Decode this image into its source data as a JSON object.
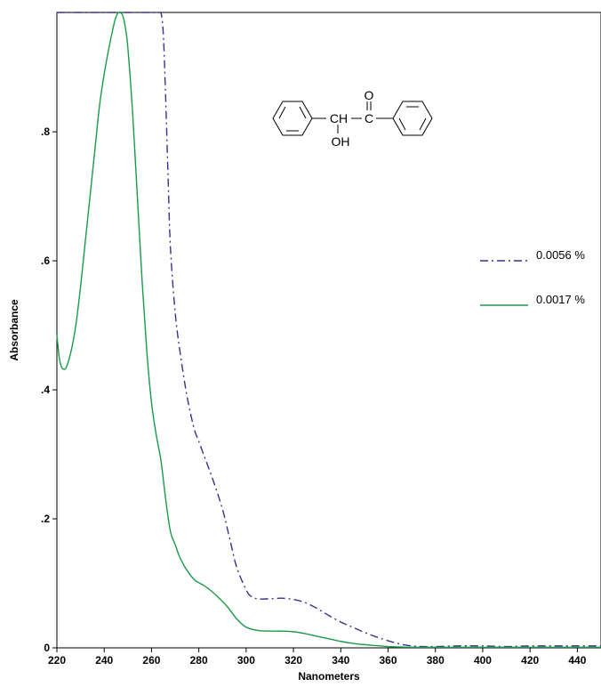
{
  "chart_data": {
    "type": "line",
    "title": "",
    "xlabel": "Nanometers",
    "ylabel": "Absorbance",
    "xlim": [
      220,
      450
    ],
    "ylim": [
      0,
      0.985
    ],
    "x_ticks": [
      220,
      240,
      260,
      280,
      300,
      320,
      340,
      360,
      380,
      400,
      420,
      440
    ],
    "x_tick_labels": [
      "220",
      "240",
      "260",
      "280",
      "300",
      "320",
      "340",
      "360",
      "380",
      "400",
      "420",
      "440"
    ],
    "y_ticks": [
      0,
      0.2,
      0.4,
      0.6,
      0.8
    ],
    "y_tick_labels": [
      "0",
      ".2",
      ".4",
      ".6",
      ".8"
    ],
    "grid": false,
    "legend_position": "right",
    "series": [
      {
        "name": "0.0056 %",
        "style": "dash-dot",
        "color": "#3a2f8f",
        "x": [
          220,
          230,
          240,
          250,
          260,
          263,
          264,
          265,
          266,
          267,
          268,
          270,
          272,
          275,
          278,
          280,
          283,
          286,
          290,
          293,
          296,
          300,
          302,
          305,
          310,
          315,
          320,
          325,
          330,
          335,
          340,
          345,
          350,
          355,
          360,
          365,
          370,
          375,
          380,
          390,
          400,
          410,
          420,
          430,
          440,
          450
        ],
        "y": [
          0.985,
          0.985,
          0.985,
          0.985,
          0.985,
          0.985,
          0.985,
          0.95,
          0.85,
          0.73,
          0.62,
          0.52,
          0.46,
          0.39,
          0.34,
          0.32,
          0.29,
          0.26,
          0.215,
          0.17,
          0.125,
          0.09,
          0.08,
          0.076,
          0.076,
          0.077,
          0.075,
          0.07,
          0.061,
          0.05,
          0.04,
          0.032,
          0.024,
          0.017,
          0.011,
          0.006,
          0.003,
          0.002,
          0.002,
          0.003,
          0.003,
          0.002,
          0.003,
          0.003,
          0.003,
          0.003
        ]
      },
      {
        "name": "0.0017 %",
        "style": "solid",
        "color": "#1a9a4a",
        "x": [
          220,
          221,
          222,
          223,
          224,
          226,
          228,
          230,
          232,
          234,
          236,
          238,
          240,
          242,
          244,
          245,
          246,
          247,
          248,
          249,
          250,
          252,
          254,
          256,
          258,
          260,
          262,
          264,
          266,
          268,
          270,
          272,
          275,
          278,
          280,
          282,
          285,
          288,
          292,
          296,
          300,
          305,
          310,
          315,
          320,
          325,
          330,
          335,
          340,
          345,
          350,
          360,
          370,
          380,
          390,
          400,
          410,
          420,
          430,
          440,
          450
        ],
        "y": [
          0.485,
          0.45,
          0.435,
          0.432,
          0.435,
          0.46,
          0.5,
          0.56,
          0.63,
          0.7,
          0.77,
          0.84,
          0.89,
          0.93,
          0.965,
          0.978,
          0.985,
          0.985,
          0.978,
          0.96,
          0.93,
          0.83,
          0.7,
          0.57,
          0.46,
          0.38,
          0.33,
          0.29,
          0.23,
          0.18,
          0.16,
          0.14,
          0.12,
          0.106,
          0.101,
          0.097,
          0.089,
          0.079,
          0.064,
          0.045,
          0.032,
          0.027,
          0.026,
          0.026,
          0.025,
          0.022,
          0.018,
          0.014,
          0.01,
          0.007,
          0.005,
          0.002,
          0.001,
          0.001,
          0.001,
          0.001,
          0.001,
          0.001,
          0.001,
          0.001,
          0.001
        ]
      }
    ]
  },
  "structure": {
    "ch_label": "CH",
    "c_label": "C",
    "o_label": "O",
    "oh_label": "OH"
  }
}
